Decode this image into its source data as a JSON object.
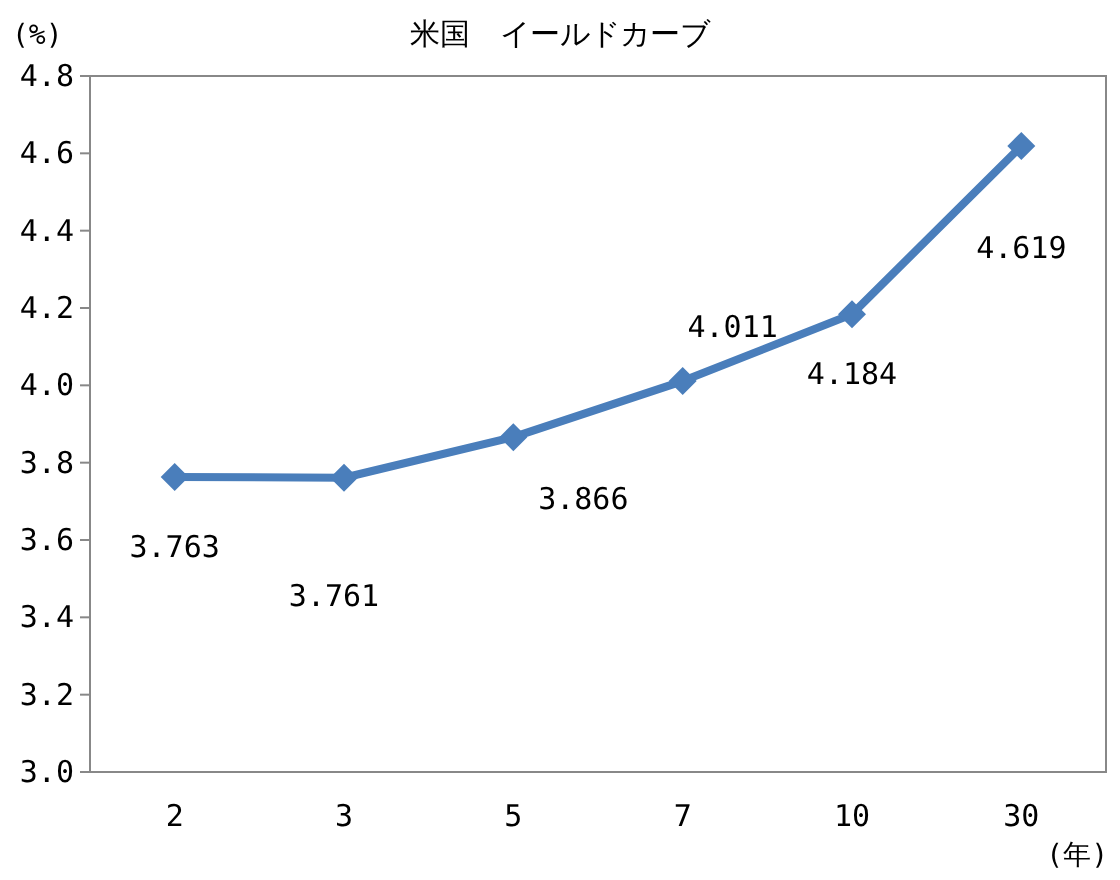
{
  "chart_data": {
    "type": "line",
    "title": "米国　イールドカーブ",
    "ylabel": "(%)",
    "xlabel": "(年)",
    "categories": [
      "2",
      "3",
      "5",
      "7",
      "10",
      "30"
    ],
    "values": [
      3.763,
      3.761,
      3.866,
      4.011,
      4.184,
      4.619
    ],
    "color": "#4a7ebb",
    "marker": "diamond",
    "data_labels": true,
    "grid": false,
    "ylim": [
      3.0,
      4.8
    ],
    "yticks": [
      {
        "value": 3.0,
        "label": "3.0"
      },
      {
        "value": 3.2,
        "label": "3.2"
      },
      {
        "value": 3.4,
        "label": "3.4"
      },
      {
        "value": 3.6,
        "label": "3.6"
      },
      {
        "value": 3.8,
        "label": "3.8"
      },
      {
        "value": 4.0,
        "label": "4.0"
      },
      {
        "value": 4.2,
        "label": "4.2"
      },
      {
        "value": 4.4,
        "label": "4.4"
      },
      {
        "value": 4.6,
        "label": "4.6"
      },
      {
        "value": 4.8,
        "label": "4.8"
      }
    ]
  }
}
